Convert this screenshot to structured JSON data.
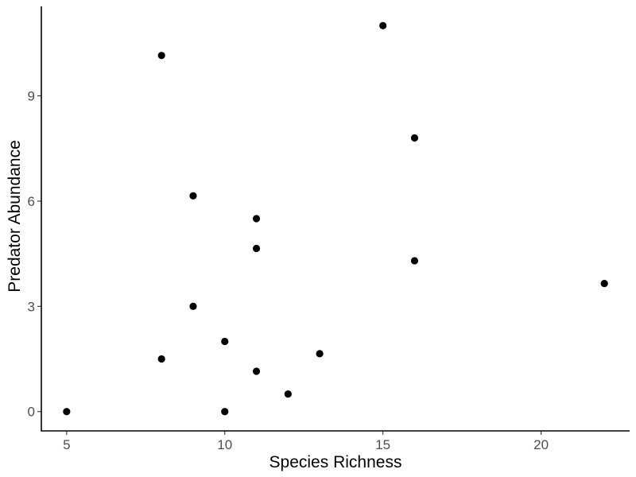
{
  "chart_data": {
    "type": "scatter",
    "title": "",
    "xlabel": "Species Richness",
    "ylabel": "Predator Abundance",
    "xlim": [
      4.2,
      22.8
    ],
    "ylim": [
      -0.55,
      11.55
    ],
    "xticks": [
      5,
      10,
      15,
      20
    ],
    "yticks": [
      0,
      3,
      6,
      9
    ],
    "grid": false,
    "legend": "none",
    "point_color": "#000000",
    "points": [
      {
        "x": 5,
        "y": 0
      },
      {
        "x": 8,
        "y": 10.15
      },
      {
        "x": 8,
        "y": 1.5
      },
      {
        "x": 9,
        "y": 6.15
      },
      {
        "x": 9,
        "y": 3.0
      },
      {
        "x": 10,
        "y": 2.0
      },
      {
        "x": 10,
        "y": 0
      },
      {
        "x": 11,
        "y": 5.5
      },
      {
        "x": 11,
        "y": 4.65
      },
      {
        "x": 11,
        "y": 1.15
      },
      {
        "x": 12,
        "y": 0.5
      },
      {
        "x": 13,
        "y": 1.65
      },
      {
        "x": 15,
        "y": 11.0
      },
      {
        "x": 16,
        "y": 7.8
      },
      {
        "x": 16,
        "y": 4.3
      },
      {
        "x": 22,
        "y": 3.65
      }
    ]
  }
}
